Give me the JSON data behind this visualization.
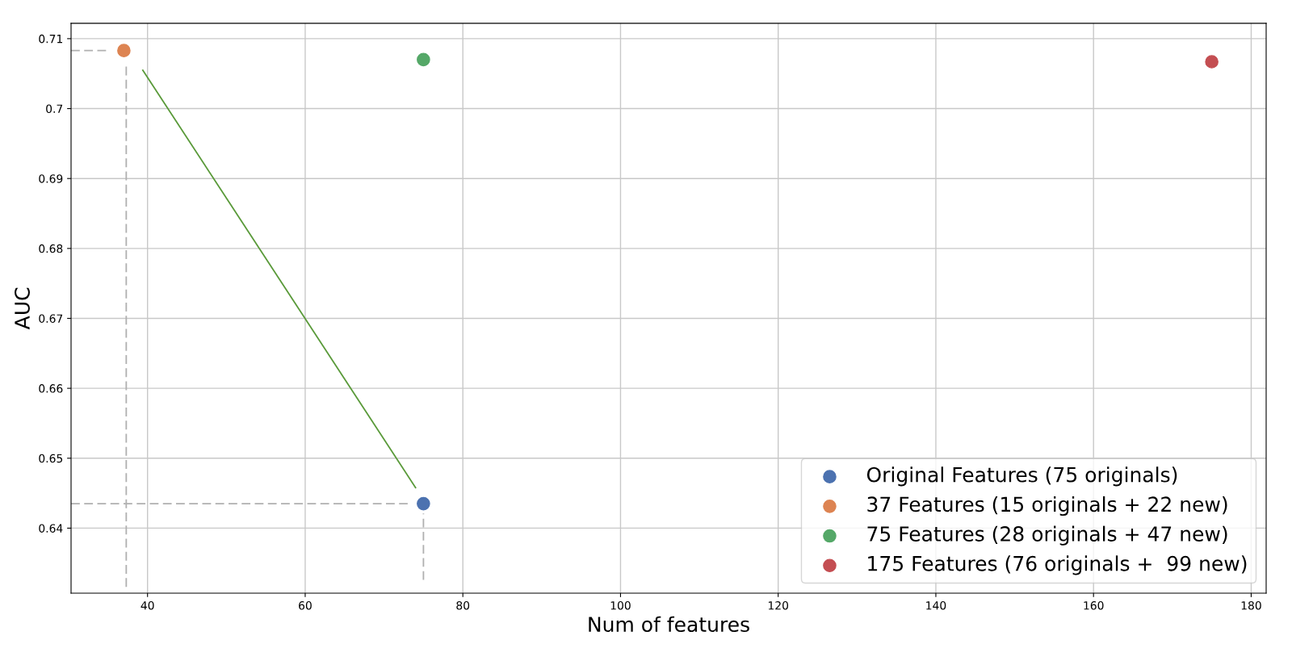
{
  "chart_data": {
    "type": "scatter",
    "xlabel": "Num of features",
    "ylabel": "AUC",
    "xlim": [
      30.3,
      181.9
    ],
    "ylim": [
      0.6307,
      0.7122
    ],
    "xticks": [
      40,
      60,
      80,
      100,
      120,
      140,
      160,
      180
    ],
    "yticks": [
      0.64,
      0.65,
      0.66,
      0.67,
      0.68,
      0.69,
      0.7,
      0.71
    ],
    "grid": true,
    "legend": "bottom right",
    "series": [
      {
        "type": "line",
        "x": [
          30.3,
          73.0
        ],
        "values": [
          0.6435,
          0.6435
        ],
        "color": "#b0b0b0",
        "line_style": "dashed"
      },
      {
        "type": "line",
        "x": [
          75,
          75
        ],
        "values": [
          0.6326,
          0.6421
        ],
        "color": "#b0b0b0",
        "line_style": "dashed"
      },
      {
        "type": "line",
        "x": [
          30.3,
          35.1
        ],
        "values": [
          0.7083,
          0.7083
        ],
        "color": "#b0b0b0",
        "line_style": "dashed"
      },
      {
        "type": "line",
        "x": [
          37.3,
          37.3
        ],
        "values": [
          0.706,
          0.631
        ],
        "color": "#b0b0b0",
        "line_style": "dashed"
      },
      {
        "type": "line",
        "x": [
          74.0,
          39.4
        ],
        "values": [
          0.6458,
          0.7055
        ],
        "color": "#5a9a3a",
        "line_style": "solid"
      },
      {
        "name": "Original Features (75 originals)",
        "x": [
          75
        ],
        "values": [
          0.6435
        ],
        "color": "#4c72b0",
        "marker": "circle"
      },
      {
        "name": "37 Features (15 originals + 22 new)",
        "x": [
          37
        ],
        "values": [
          0.7083
        ],
        "color": "#dd8452",
        "marker": "circle"
      },
      {
        "name": "75 Features (28 originals + 47 new)",
        "x": [
          75
        ],
        "values": [
          0.707
        ],
        "color": "#55a868",
        "marker": "circle"
      },
      {
        "name": "175 Features (76 originals +  99 new)",
        "x": [
          175
        ],
        "values": [
          0.7067
        ],
        "color": "#c44e52",
        "marker": "circle"
      }
    ]
  }
}
